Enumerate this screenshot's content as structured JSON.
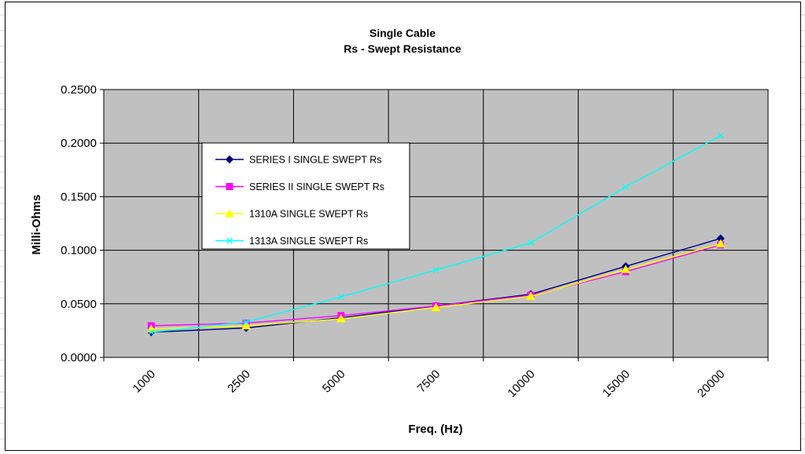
{
  "colors": {
    "plot_bg": "#c0c0c0",
    "grid": "#000000",
    "sheet_grid": "#d4d4d4"
  },
  "chart_data": {
    "type": "line",
    "title": "Single Cable",
    "subtitle": "Rs - Swept Resistance",
    "xlabel": "Freq. (Hz)",
    "ylabel": "Milli-Ohms",
    "categories": [
      "1000",
      "2500",
      "5000",
      "7500",
      "10000",
      "15000",
      "20000"
    ],
    "ylim": [
      0,
      0.25
    ],
    "yticks": [
      "0.0000",
      "0.0500",
      "0.1000",
      "0.1500",
      "0.2000",
      "0.2500"
    ],
    "grid": true,
    "legend_position": "upper-left inside plot",
    "series": [
      {
        "name": "SERIES I SINGLE SWEPT Rs",
        "color": "#000080",
        "marker": "diamond",
        "values": [
          0.0235,
          0.0275,
          0.037,
          0.048,
          0.059,
          0.085,
          0.111
        ]
      },
      {
        "name": "SERIES II SINGLE SWEPT Rs",
        "color": "#ff00ff",
        "marker": "square",
        "values": [
          0.0295,
          0.032,
          0.039,
          0.048,
          0.058,
          0.08,
          0.105
        ]
      },
      {
        "name": "1310A SINGLE SWEPT Rs",
        "color": "#ffff00",
        "marker": "triangle",
        "values": [
          0.0265,
          0.0295,
          0.036,
          0.0465,
          0.057,
          0.082,
          0.106
        ]
      },
      {
        "name": "1313A SINGLE SWEPT Rs",
        "color": "#00ffff",
        "marker": "x",
        "values": [
          0.0235,
          0.033,
          0.0565,
          0.0815,
          0.107,
          0.159,
          0.207
        ]
      }
    ]
  }
}
